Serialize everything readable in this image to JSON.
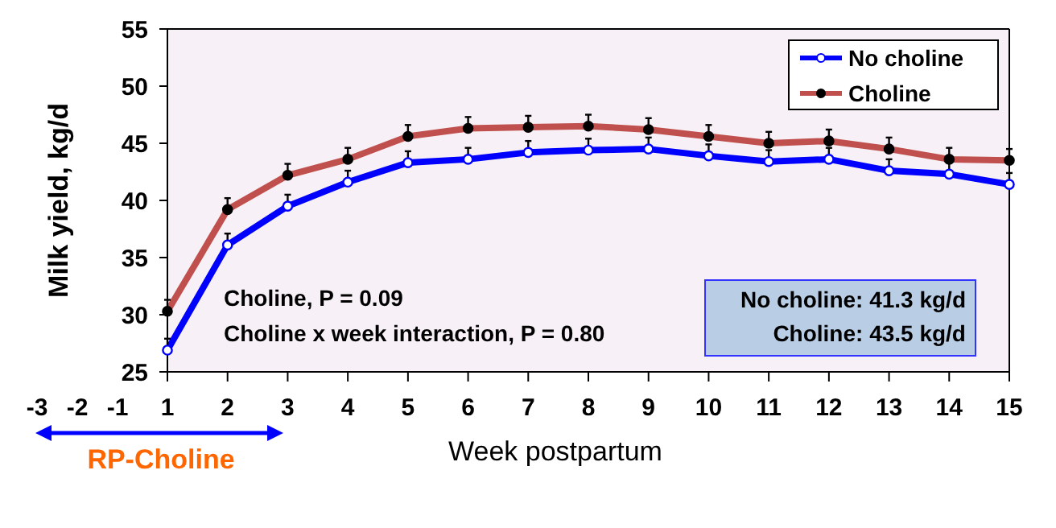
{
  "chart_data": {
    "type": "line",
    "xlabel": "Week postpartum",
    "ylabel": "Milk yield, kg/d",
    "x": [
      1,
      2,
      3,
      4,
      5,
      6,
      7,
      8,
      9,
      10,
      11,
      12,
      13,
      14,
      15
    ],
    "xlim": [
      1,
      15
    ],
    "xticks": [
      1,
      2,
      3,
      4,
      5,
      6,
      7,
      8,
      9,
      10,
      11,
      12,
      13,
      14,
      15
    ],
    "ylim": [
      25,
      55
    ],
    "yticks": [
      25,
      30,
      35,
      40,
      45,
      50,
      55
    ],
    "series": [
      {
        "name": "No choline",
        "color": "#0000ff",
        "values": [
          26.9,
          36.1,
          39.5,
          41.6,
          43.3,
          43.6,
          44.2,
          44.4,
          44.5,
          43.9,
          43.4,
          43.6,
          42.6,
          42.3,
          41.4
        ],
        "errors": [
          [
            26.9,
            27.9
          ],
          [
            36.1,
            37.1
          ],
          [
            39.5,
            40.5
          ],
          [
            41.6,
            42.6
          ],
          [
            43.3,
            44.3
          ],
          [
            43.6,
            44.6
          ],
          [
            44.2,
            45.2
          ],
          [
            44.4,
            45.4
          ],
          [
            44.5,
            45.5
          ],
          [
            43.9,
            44.9
          ],
          [
            43.4,
            44.4
          ],
          [
            43.6,
            44.6
          ],
          [
            42.6,
            43.6
          ],
          [
            42.3,
            43.3
          ],
          [
            41.4,
            42.4
          ]
        ]
      },
      {
        "name": "Choline",
        "color": "#c0504d",
        "values": [
          30.3,
          39.2,
          42.2,
          43.6,
          45.6,
          46.3,
          46.4,
          46.5,
          46.2,
          45.6,
          45.0,
          45.2,
          44.5,
          43.6,
          43.5
        ],
        "errors": [
          [
            30.3,
            31.3
          ],
          [
            39.2,
            40.2
          ],
          [
            42.2,
            43.2
          ],
          [
            43.6,
            44.6
          ],
          [
            45.6,
            46.6
          ],
          [
            46.3,
            47.3
          ],
          [
            46.4,
            47.4
          ],
          [
            46.5,
            47.5
          ],
          [
            46.2,
            47.2
          ],
          [
            45.6,
            46.6
          ],
          [
            45.0,
            46.0
          ],
          [
            45.2,
            46.2
          ],
          [
            44.5,
            45.5
          ],
          [
            43.6,
            44.6
          ],
          [
            43.5,
            44.5
          ]
        ]
      }
    ],
    "marker": "circle",
    "legend": "top right",
    "grid": false,
    "annotations": [
      "Choline, P = 0.09",
      "Choline x week interaction, P = 0.80",
      "No choline: 41.3 kg/d",
      "Choline: 43.5 kg/d",
      "-3",
      "-2",
      "-1",
      "RP-Choline"
    ]
  }
}
